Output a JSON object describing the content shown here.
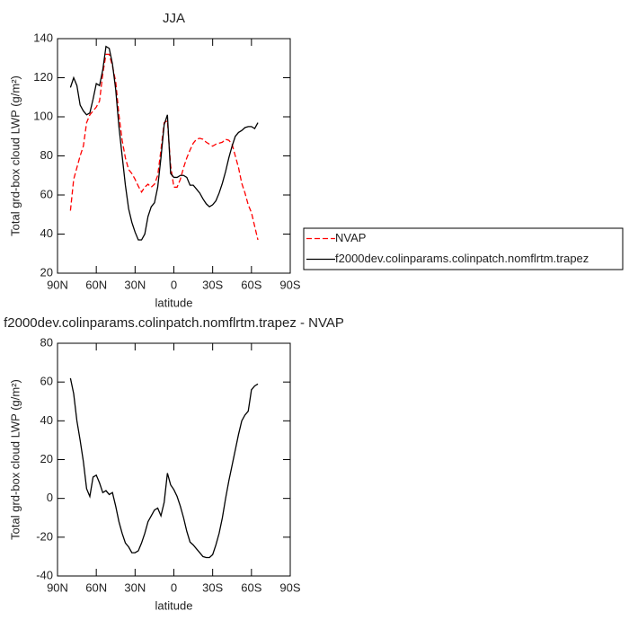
{
  "chart_data": [
    {
      "type": "line",
      "title": "JJA",
      "xlabel": "latitude",
      "ylabel": "Total grd-box cloud LWP (g/m²)",
      "x": [
        80,
        77.5,
        75,
        72.5,
        70,
        67.5,
        65,
        62.5,
        60,
        57.5,
        55,
        52.5,
        50,
        47.5,
        45,
        42.5,
        40,
        37.5,
        35,
        32.5,
        30,
        27.5,
        25,
        22.5,
        20,
        17.5,
        15,
        12.5,
        10,
        7.5,
        5,
        2.5,
        0,
        -2.5,
        -5,
        -7.5,
        -10,
        -12.5,
        -15,
        -17.5,
        -20,
        -22.5,
        -25,
        -27.5,
        -30,
        -32.5,
        -35,
        -37.5,
        -40,
        -42.5,
        -45,
        -47.5,
        -50,
        -52.5,
        -55,
        -57.5,
        -60,
        -62.5,
        -65
      ],
      "series": [
        {
          "name": "NVAP",
          "color": "#ff0000",
          "dashed": true,
          "values": [
            52,
            68,
            74,
            80,
            85,
            97,
            101,
            103,
            105,
            108,
            122,
            132,
            132,
            126,
            118,
            101,
            88,
            79,
            73,
            71,
            68,
            64.5,
            61.5,
            64,
            65.5,
            64,
            65.5,
            70,
            83,
            97,
            98,
            75,
            64,
            64,
            68,
            74,
            79,
            83,
            86.5,
            88.5,
            89,
            88.5,
            87,
            86,
            85,
            86,
            86.5,
            87,
            88.5,
            88,
            86,
            80,
            74,
            66,
            61,
            55,
            51,
            44,
            37
          ]
        },
        {
          "name": "f2000dev.colinparams.colinpatch.nomflrtm.trapez",
          "color": "#000000",
          "dashed": false,
          "values": [
            115,
            120,
            116,
            106,
            103,
            101,
            102,
            109,
            117,
            116,
            124,
            136,
            135,
            127,
            114,
            95,
            80,
            65,
            53,
            46,
            41,
            37,
            37,
            40,
            49,
            54,
            56,
            64,
            79,
            96,
            101,
            71,
            69,
            69,
            70,
            70,
            69,
            65,
            65,
            63,
            61,
            58,
            55.5,
            54,
            55,
            57,
            61,
            66,
            72,
            79,
            85,
            90,
            92,
            93,
            94.5,
            95,
            95,
            94,
            97
          ]
        }
      ],
      "xlim": [
        90,
        -90
      ],
      "xticks": [
        {
          "value": 90,
          "label": "90N"
        },
        {
          "value": 60,
          "label": "60N"
        },
        {
          "value": 30,
          "label": "30N"
        },
        0,
        {
          "value": -30,
          "label": "30S"
        },
        {
          "value": -60,
          "label": "60S"
        },
        {
          "value": -90,
          "label": "90S"
        }
      ],
      "ylim": [
        20,
        140
      ],
      "yticks": [
        20,
        40,
        60,
        80,
        100,
        120,
        140
      ],
      "legend": "right"
    },
    {
      "type": "line",
      "title": "f2000dev.colinparams.colinpatch.nomflrtm.trapez - NVAP",
      "xlabel": "latitude",
      "ylabel": "Total grd-box cloud LWP (g/m²)",
      "x": [
        80,
        77.5,
        75,
        72.5,
        70,
        67.5,
        65,
        62.5,
        60,
        57.5,
        55,
        52.5,
        50,
        47.5,
        45,
        42.5,
        40,
        37.5,
        35,
        32.5,
        30,
        27.5,
        25,
        22.5,
        20,
        17.5,
        15,
        12.5,
        10,
        7.5,
        5,
        2.5,
        0,
        -2.5,
        -5,
        -7.5,
        -10,
        -12.5,
        -15,
        -17.5,
        -20,
        -22.5,
        -25,
        -27.5,
        -30,
        -32.5,
        -35,
        -37.5,
        -40,
        -42.5,
        -45,
        -47.5,
        -50,
        -52.5,
        -55,
        -57.5,
        -60,
        -62.5,
        -65
      ],
      "series": [
        {
          "color": "#000000",
          "dashed": false,
          "values": [
            62,
            54,
            40,
            30,
            19,
            5,
            1,
            11,
            12,
            8,
            3,
            4,
            2,
            3,
            -4,
            -12,
            -18,
            -23,
            -25,
            -28,
            -28,
            -27,
            -23,
            -18,
            -12,
            -9,
            -6,
            -5,
            -9,
            -2,
            13,
            7,
            4.5,
            1,
            -4,
            -10,
            -17,
            -22.5,
            -24,
            -26,
            -28,
            -30,
            -30.5,
            -30.5,
            -29,
            -24,
            -18,
            -10,
            0,
            9,
            17,
            25,
            33,
            40,
            43,
            45,
            56,
            58,
            59
          ]
        }
      ],
      "xlim": [
        90,
        -90
      ],
      "xticks": [
        {
          "value": 90,
          "label": "90N"
        },
        {
          "value": 60,
          "label": "60N"
        },
        {
          "value": 30,
          "label": "30N"
        },
        0,
        {
          "value": -30,
          "label": "30S"
        },
        {
          "value": -60,
          "label": "60S"
        },
        {
          "value": -90,
          "label": "90S"
        }
      ],
      "ylim": [
        -40,
        80
      ],
      "yticks": [
        -40,
        -20,
        0,
        20,
        40,
        60,
        80
      ]
    }
  ]
}
